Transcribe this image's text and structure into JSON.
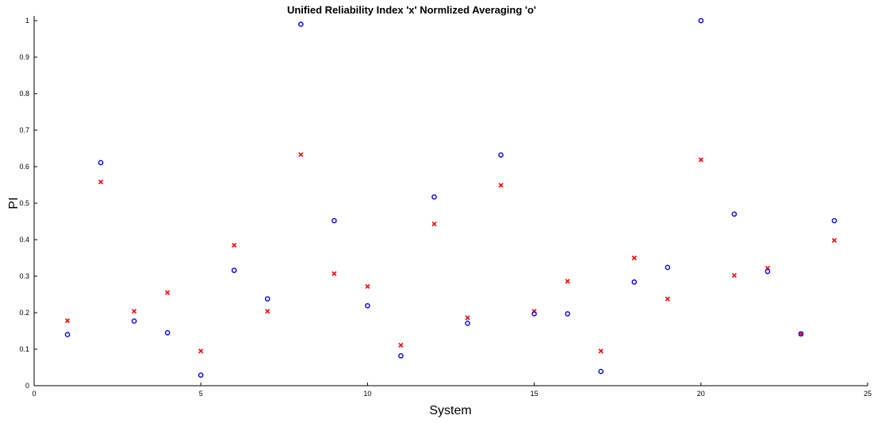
{
  "chart_data": {
    "type": "scatter",
    "title": "Unified Reliability Index 'x' Normlized Averaging 'o'",
    "xlabel": "System",
    "ylabel": "PI",
    "xlim": [
      0,
      25
    ],
    "ylim": [
      0,
      1
    ],
    "xticks": [
      "0",
      "5",
      "10",
      "15",
      "20",
      "25"
    ],
    "yticks": [
      "0",
      "0.1",
      "0.2",
      "0.3",
      "0.4",
      "0.5",
      "0.6",
      "0.7",
      "0.8",
      "0.9",
      "1"
    ],
    "grid": false,
    "x": [
      1,
      2,
      3,
      4,
      5,
      6,
      7,
      8,
      9,
      10,
      11,
      12,
      13,
      14,
      15,
      16,
      17,
      18,
      19,
      20,
      21,
      22,
      23,
      24
    ],
    "series": [
      {
        "marker": "x",
        "color": "#ff0000",
        "values": [
          0.178,
          0.558,
          0.204,
          0.255,
          0.095,
          0.385,
          0.204,
          0.633,
          0.307,
          0.272,
          0.111,
          0.443,
          0.186,
          0.549,
          0.204,
          0.286,
          0.095,
          0.35,
          0.238,
          0.619,
          0.302,
          0.322,
          0.142,
          0.398
        ]
      },
      {
        "marker": "o",
        "color": "#0000ff",
        "values": [
          0.14,
          0.611,
          0.177,
          0.145,
          0.029,
          0.316,
          0.238,
          0.99,
          0.452,
          0.219,
          0.082,
          0.517,
          0.171,
          0.632,
          0.197,
          0.197,
          0.039,
          0.284,
          0.324,
          1.0,
          0.47,
          0.313,
          0.142,
          0.452
        ]
      }
    ]
  }
}
